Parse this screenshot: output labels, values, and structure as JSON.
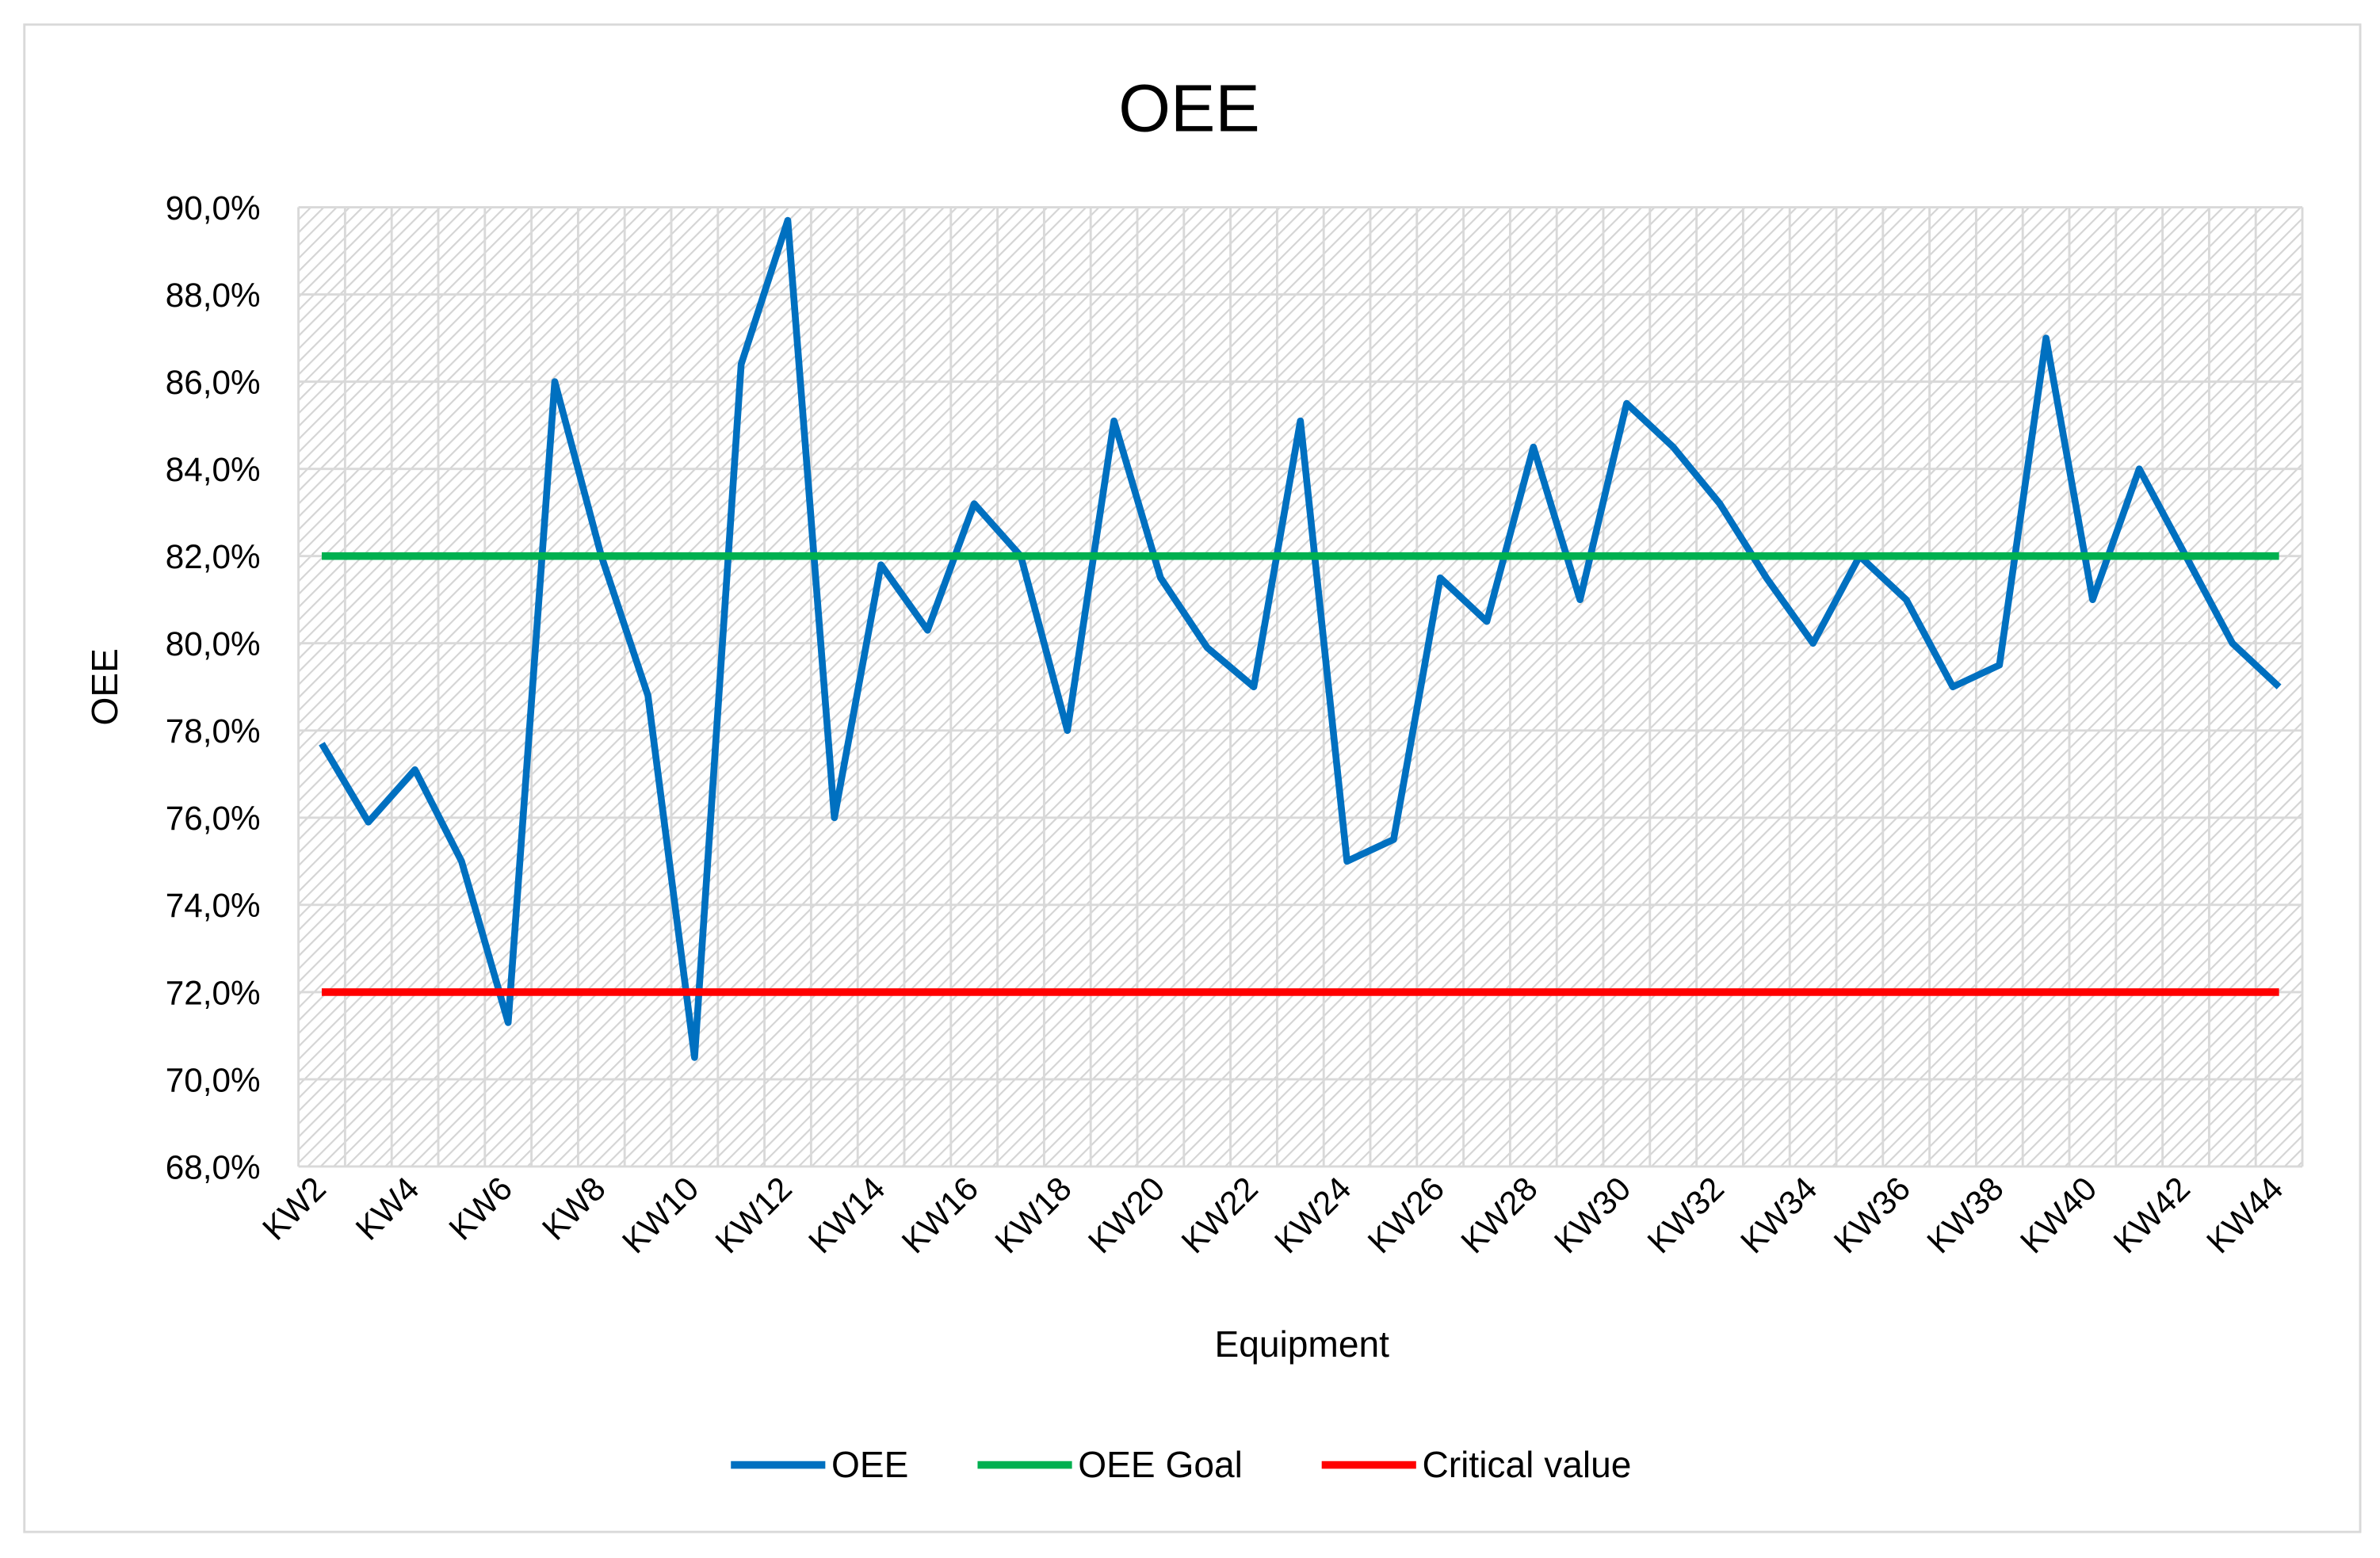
{
  "chart_data": {
    "type": "line",
    "title": "OEE",
    "xlabel": "Equipment",
    "ylabel": "OEE",
    "ylim": [
      68,
      90
    ],
    "ytick_step": 2,
    "ytick_format": "decimal-comma-percent",
    "grid": true,
    "legend_position": "bottom",
    "categories": [
      "KW2",
      "KW3",
      "KW4",
      "KW5",
      "KW6",
      "KW7",
      "KW8",
      "KW9",
      "KW10",
      "KW11",
      "KW12",
      "KW13",
      "KW14",
      "KW15",
      "KW16",
      "KW17",
      "KW18",
      "KW19",
      "KW20",
      "KW21",
      "KW22",
      "KW23",
      "KW24",
      "KW25",
      "KW26",
      "KW27",
      "KW28",
      "KW29",
      "KW30",
      "KW31",
      "KW32",
      "KW33",
      "KW34",
      "KW35",
      "KW36",
      "KW37",
      "KW38",
      "KW39",
      "KW40",
      "KW41",
      "KW42",
      "KW43",
      "KW44"
    ],
    "xtick_labels_shown": [
      "KW2",
      "KW4",
      "KW6",
      "KW8",
      "KW10",
      "KW12",
      "KW14",
      "KW16",
      "KW18",
      "KW20",
      "KW22",
      "KW24",
      "KW26",
      "KW28",
      "KW30",
      "KW32",
      "KW34",
      "KW36",
      "KW38",
      "KW40",
      "KW42",
      "KW44"
    ],
    "series": [
      {
        "name": "OEE",
        "color": "#0070C0",
        "values": [
          77.7,
          75.9,
          77.1,
          75.0,
          71.3,
          86.0,
          82.0,
          78.8,
          70.5,
          86.4,
          89.7,
          76.0,
          81.8,
          80.3,
          83.2,
          82.0,
          78.0,
          85.1,
          81.5,
          79.9,
          79.0,
          85.1,
          75.0,
          75.5,
          81.5,
          80.5,
          84.5,
          81.0,
          85.5,
          84.5,
          83.2,
          81.5,
          80.0,
          82.0,
          81.0,
          79.0,
          79.5,
          87.0,
          81.0,
          84.0,
          82.0,
          80.0,
          79.0
        ]
      },
      {
        "name": "OEE Goal",
        "color": "#00B050",
        "constant": 82.0
      },
      {
        "name": "Critical value",
        "color": "#FF0000",
        "constant": 72.0
      }
    ]
  }
}
